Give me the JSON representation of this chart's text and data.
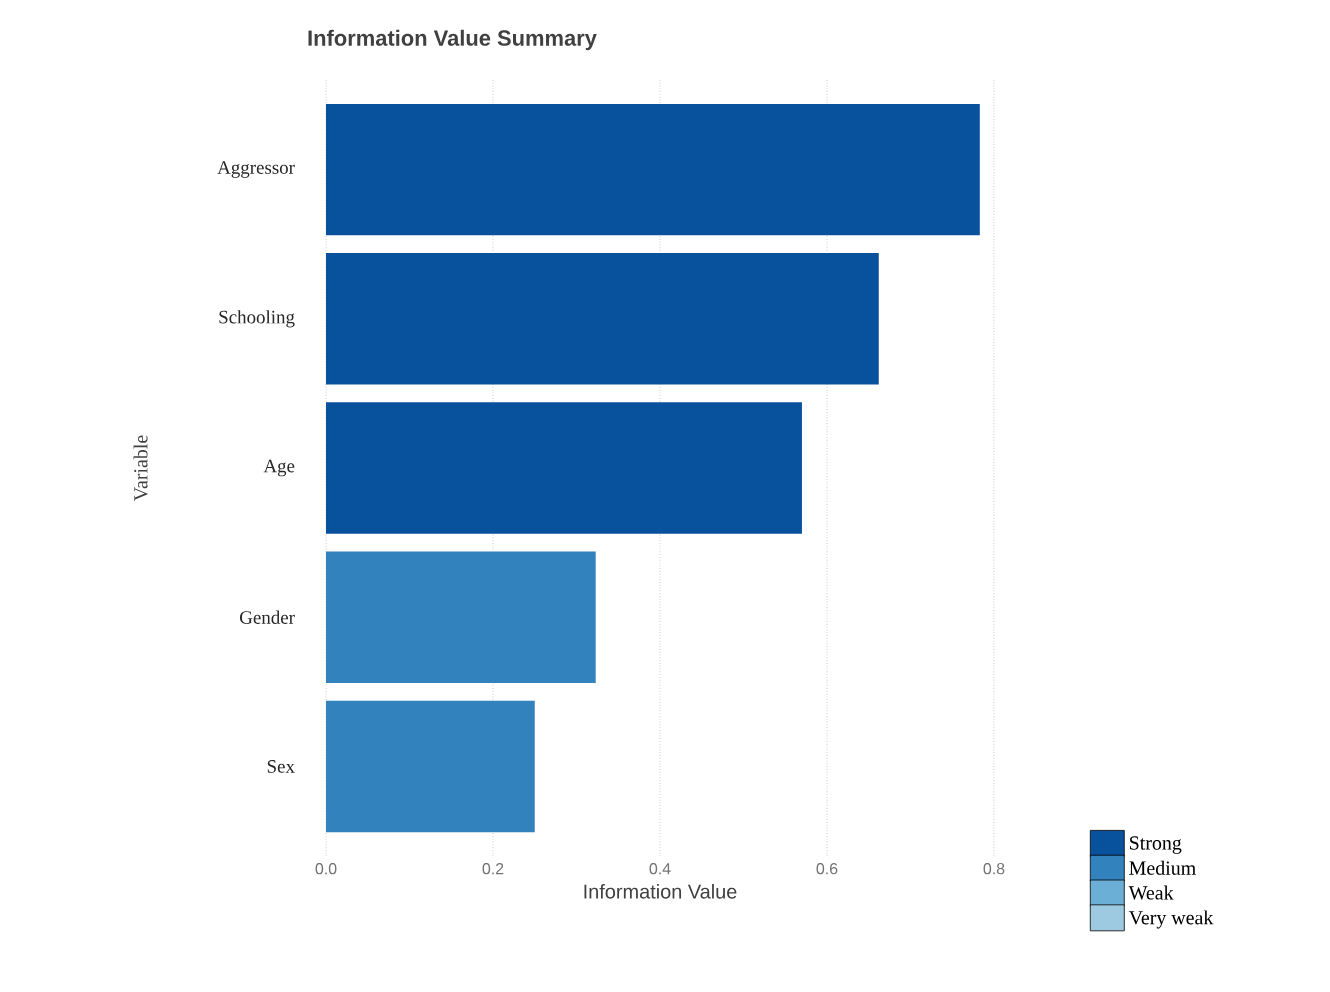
{
  "chart_data": {
    "type": "bar",
    "orientation": "horizontal",
    "title": "Information Value Summary",
    "xlabel": "Information Value",
    "ylabel": "Variable",
    "categories": [
      "Aggressor",
      "Schooling",
      "Age",
      "Gender",
      "Sex"
    ],
    "series": [
      {
        "name": "Strong",
        "color": "#08519c",
        "values": [
          0.783,
          0.662,
          0.57,
          null,
          null
        ]
      },
      {
        "name": "Medium",
        "color": "#3182bd",
        "values": [
          null,
          null,
          null,
          0.323,
          0.25
        ]
      },
      {
        "name": "Weak",
        "color": "#6baed6",
        "values": [
          null,
          null,
          null,
          null,
          null
        ]
      },
      {
        "name": "Very weak",
        "color": "#9ecae1",
        "values": [
          null,
          null,
          null,
          null,
          null
        ]
      }
    ],
    "xlim": [
      0,
      0.8
    ],
    "xticks": [
      {
        "value": 0,
        "label": "0.0"
      },
      {
        "value": 0.2,
        "label": "0.2"
      },
      {
        "value": 0.4,
        "label": "0.4"
      },
      {
        "value": 0.6,
        "label": "0.6"
      },
      {
        "value": 0.8,
        "label": "0.8"
      }
    ],
    "grid": "x",
    "legend": "bottom right"
  }
}
